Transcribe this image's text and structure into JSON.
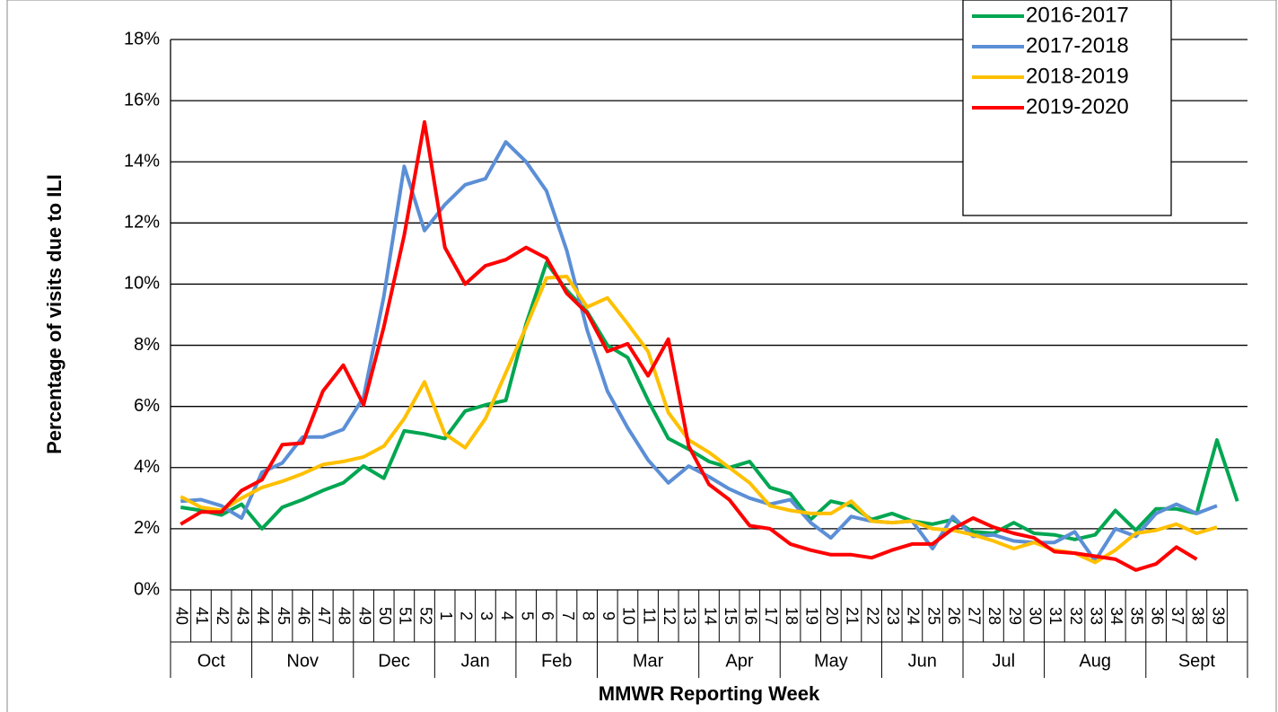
{
  "chart_data": {
    "type": "line",
    "y_label": "Percentage of visits due to ILI",
    "x_label": "MMWR Reporting Week",
    "categories": [
      "40",
      "41",
      "42",
      "43",
      "44",
      "45",
      "46",
      "47",
      "48",
      "49",
      "50",
      "51",
      "52",
      "1",
      "2",
      "3",
      "4",
      "5",
      "6",
      "7",
      "8",
      "9",
      "10",
      "11",
      "12",
      "13",
      "14",
      "15",
      "16",
      "17",
      "18",
      "19",
      "20",
      "21",
      "22",
      "23",
      "24",
      "25",
      "26",
      "27",
      "28",
      "29",
      "30",
      "31",
      "32",
      "33",
      "34",
      "35",
      "36",
      "37",
      "38",
      "39",
      null
    ],
    "groups": [
      {
        "label": "Oct",
        "count": 4
      },
      {
        "label": "Nov",
        "count": 5
      },
      {
        "label": "Dec",
        "count": 4
      },
      {
        "label": "Jan",
        "count": 4
      },
      {
        "label": "Feb",
        "count": 4
      },
      {
        "label": "Mar",
        "count": 5
      },
      {
        "label": "Apr",
        "count": 4
      },
      {
        "label": "May",
        "count": 5
      },
      {
        "label": "Jun",
        "count": 4
      },
      {
        "label": "Jul",
        "count": 4
      },
      {
        "label": "Aug",
        "count": 5
      },
      {
        "label": "Sept",
        "count": 5
      }
    ],
    "series": [
      {
        "name": "2016-2017",
        "color": "#00a651",
        "values": [
          2.7,
          2.6,
          2.45,
          2.8,
          2.0,
          2.7,
          2.95,
          3.25,
          3.5,
          4.05,
          3.65,
          5.2,
          5.1,
          4.95,
          5.85,
          6.05,
          6.2,
          8.7,
          10.7,
          9.8,
          9.1,
          8.0,
          7.6,
          6.2,
          4.95,
          4.6,
          4.2,
          4.0,
          4.2,
          3.35,
          3.15,
          2.3,
          2.9,
          2.75,
          2.3,
          2.5,
          2.25,
          2.15,
          2.3,
          1.9,
          1.85,
          2.2,
          1.85,
          1.8,
          1.65,
          1.8,
          2.6,
          1.95,
          2.65,
          2.65,
          2.5,
          4.9,
          2.9
        ]
      },
      {
        "name": "2017-2018",
        "color": "#5b8fd6",
        "values": [
          2.9,
          2.95,
          2.75,
          2.35,
          3.85,
          4.15,
          5.0,
          5.0,
          5.25,
          6.3,
          9.6,
          13.85,
          11.75,
          12.6,
          13.25,
          13.45,
          14.65,
          14.0,
          13.05,
          11.1,
          8.5,
          6.5,
          5.3,
          4.25,
          3.5,
          4.05,
          3.7,
          3.3,
          3.0,
          2.8,
          2.95,
          2.2,
          1.7,
          2.4,
          2.25,
          2.2,
          2.25,
          1.35,
          2.4,
          1.75,
          1.8,
          1.6,
          1.55,
          1.55,
          1.9,
          0.95,
          2.0,
          1.75,
          2.5,
          2.8,
          2.5,
          2.75,
          null
        ]
      },
      {
        "name": "2018-2019",
        "color": "#ffc000",
        "values": [
          3.05,
          2.7,
          2.6,
          3.0,
          3.35,
          3.55,
          3.8,
          4.1,
          4.2,
          4.35,
          4.7,
          5.6,
          6.8,
          5.1,
          4.65,
          5.6,
          7.1,
          8.6,
          10.2,
          10.25,
          9.25,
          9.55,
          8.7,
          7.8,
          5.8,
          4.9,
          4.5,
          4.0,
          3.5,
          2.75,
          2.6,
          2.5,
          2.5,
          2.9,
          2.25,
          2.2,
          2.25,
          2.0,
          1.95,
          1.8,
          1.6,
          1.35,
          1.55,
          1.3,
          1.2,
          0.9,
          1.3,
          1.85,
          1.95,
          2.15,
          1.85,
          2.05,
          null
        ]
      },
      {
        "name": "2019-2020",
        "color": "#ff0000",
        "values": [
          2.15,
          2.55,
          2.55,
          3.25,
          3.6,
          4.75,
          4.8,
          6.5,
          7.35,
          6.05,
          8.6,
          11.6,
          15.3,
          11.2,
          10.0,
          10.6,
          10.8,
          11.2,
          10.85,
          9.7,
          9.05,
          7.8,
          8.05,
          7.0,
          8.2,
          4.7,
          3.45,
          2.95,
          2.1,
          2.0,
          1.5,
          1.3,
          1.15,
          1.15,
          1.05,
          1.3,
          1.5,
          1.5,
          2.0,
          2.35,
          2.05,
          1.85,
          1.7,
          1.25,
          1.2,
          1.1,
          1.0,
          0.65,
          0.85,
          1.4,
          1.0,
          null,
          null
        ]
      }
    ],
    "ylim": [
      0,
      18
    ],
    "yticks": [
      {
        "value": 0,
        "label": "0%"
      },
      {
        "value": 2,
        "label": "2%"
      },
      {
        "value": 4,
        "label": "4%"
      },
      {
        "value": 6,
        "label": "6%"
      },
      {
        "value": 8,
        "label": "8%"
      },
      {
        "value": 10,
        "label": "10%"
      },
      {
        "value": 12,
        "label": "12%"
      },
      {
        "value": 14,
        "label": "14%"
      },
      {
        "value": 16,
        "label": "16%"
      },
      {
        "value": 18,
        "label": "18%"
      }
    ],
    "grid": true,
    "legend": "upper right"
  }
}
